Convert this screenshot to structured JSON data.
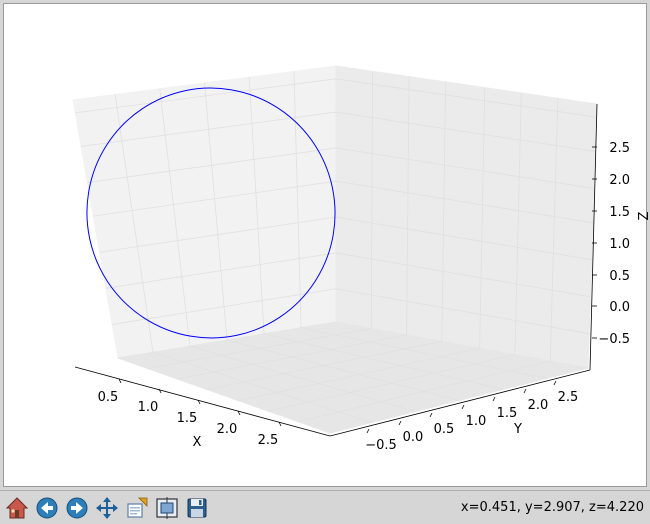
{
  "chart_data": {
    "type": "line",
    "projection": "3d",
    "title": "",
    "xlabel": "X",
    "ylabel": "Y",
    "zlabel": "Z",
    "x_ticks": [
      "0.5",
      "1.0",
      "1.5",
      "2.0",
      "2.5"
    ],
    "y_ticks": [
      "−0.5",
      "0.0",
      "0.5",
      "1.0",
      "1.5",
      "2.0",
      "2.5"
    ],
    "z_ticks": [
      "−0.5",
      "0.0",
      "0.5",
      "1.0",
      "1.5",
      "2.0",
      "2.5"
    ],
    "xlim": [
      0,
      3
    ],
    "ylim": [
      -1,
      3
    ],
    "zlim": [
      -1,
      3
    ],
    "grid": true,
    "series": [
      {
        "color": "#0000ff",
        "shape": "circle",
        "center": [
          1.5,
          1.0,
          1.0
        ],
        "radius": 1.5
      }
    ]
  },
  "toolbar": {
    "buttons": [
      {
        "name": "home-button",
        "icon": "home-icon"
      },
      {
        "name": "back-button",
        "icon": "back-arrow-icon"
      },
      {
        "name": "forward-button",
        "icon": "forward-arrow-icon"
      },
      {
        "name": "pan-button",
        "icon": "move-cross-icon"
      },
      {
        "name": "zoom-button",
        "icon": "zoom-rect-icon"
      },
      {
        "name": "subplots-button",
        "icon": "subplots-icon"
      },
      {
        "name": "save-button",
        "icon": "floppy-disk-icon"
      }
    ]
  },
  "status": {
    "coords": "x=0.451, y=2.907, z=4.220"
  }
}
